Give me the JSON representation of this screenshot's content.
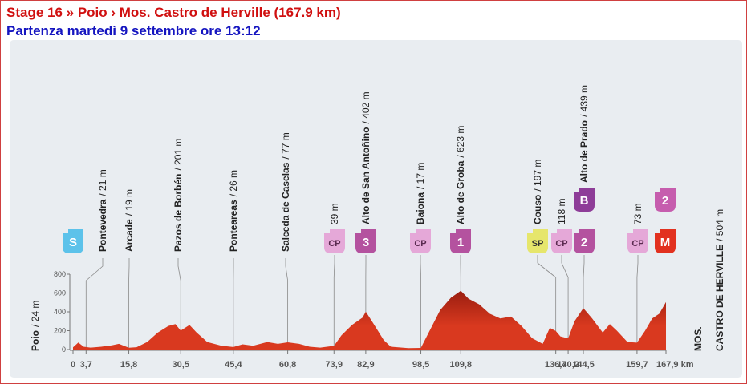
{
  "header": {
    "title": "Stage 16 » Poio › Mos. Castro de Herville (167.9 km)",
    "subtitle": "Partenza martedì 9 settembre ore 13:12"
  },
  "chart_data": {
    "type": "area",
    "color": "#d9391f",
    "x": [
      0,
      1.5,
      3,
      5,
      8,
      11,
      13,
      15.8,
      18,
      21,
      24,
      27,
      29,
      30.5,
      33,
      35,
      38,
      42,
      45.4,
      48,
      51,
      55,
      58,
      60.8,
      64,
      67,
      70,
      73.9,
      76,
      79,
      82,
      82.9,
      85,
      88,
      90,
      95,
      98.5,
      101,
      104,
      107,
      109.8,
      112,
      115,
      118,
      121,
      124,
      127,
      130,
      133,
      135,
      136.7,
      138,
      140.2,
      142,
      144.5,
      147,
      150,
      152,
      154,
      157,
      159.7,
      162,
      164,
      166,
      167.9
    ],
    "values": [
      24,
      75,
      30,
      20,
      30,
      45,
      60,
      19,
      25,
      80,
      180,
      250,
      270,
      201,
      260,
      180,
      80,
      40,
      26,
      55,
      40,
      80,
      60,
      77,
      60,
      30,
      20,
      39,
      150,
      260,
      340,
      402,
      280,
      100,
      30,
      15,
      17,
      200,
      420,
      550,
      623,
      540,
      480,
      380,
      330,
      350,
      250,
      120,
      60,
      230,
      197,
      140,
      118,
      300,
      439,
      330,
      180,
      270,
      200,
      80,
      73,
      200,
      330,
      380,
      504
    ],
    "xlim": [
      0,
      167.9
    ],
    "ylim": [
      0,
      800
    ],
    "yticks": [
      0,
      200,
      400,
      600,
      800
    ],
    "xticks": [
      0,
      {
        "value": 3.7,
        "label": "3,7"
      },
      {
        "value": 15.8,
        "label": "15,8"
      },
      {
        "value": 30.5,
        "label": "30,5"
      },
      {
        "value": 45.4,
        "label": "45,4"
      },
      {
        "value": 60.8,
        "label": "60,8"
      },
      {
        "value": 73.9,
        "label": "73,9"
      },
      {
        "value": 82.9,
        "label": "82,9"
      },
      {
        "value": 98.5,
        "label": "98,5"
      },
      {
        "value": 109.8,
        "label": "109,8"
      },
      {
        "value": 136.7,
        "label": "136,7"
      },
      {
        "value": 140.2,
        "label": "140,2"
      },
      {
        "value": 144.5,
        "label": "144,5"
      },
      {
        "value": 159.7,
        "label": "159,7"
      },
      {
        "value": 167.9,
        "label": "167,9 km"
      }
    ],
    "start": {
      "name": "Poio",
      "elevation_label": "/ 24 m",
      "badges": [
        {
          "text": "S",
          "color": "#5cc2ea",
          "text_color": "#ffffff"
        }
      ]
    },
    "finish": {
      "name_lines": [
        "MOS.",
        "CASTRO DE HERVILLE"
      ],
      "elevation_label": "/ 504 m",
      "badges": [
        {
          "text": "2",
          "color": "#c65dae",
          "text_color": "#ffffff"
        },
        {
          "text": "M",
          "color": "#e2311f",
          "text_color": "#ffffff"
        }
      ]
    },
    "waypoints": [
      {
        "name": "Pontevedra",
        "elevation_label": "/ 21 m"
      },
      {
        "name": "Arcade",
        "elevation_label": "/ 19 m"
      },
      {
        "name": "Pazos de Borbén",
        "elevation_label": "/ 201 m"
      },
      {
        "name": "Ponteareas",
        "elevation_label": "/ 26 m"
      },
      {
        "name": "Salceda de Caselas",
        "elevation_label": "/ 77 m"
      },
      {
        "elevation_label": "39 m",
        "badges": [
          {
            "text": "CP",
            "color": "#e5a8d8",
            "text_color": "#5a2a50"
          }
        ]
      },
      {
        "name": "Alto de San Antoñino",
        "elevation_label": "/ 402 m",
        "badges": [
          {
            "text": "3",
            "color": "#b4529f",
            "text_color": "#ffffff"
          }
        ]
      },
      {
        "name": "Baiona",
        "elevation_label": "/ 17 m",
        "badges": [
          {
            "text": "CP",
            "color": "#e5a8d8",
            "text_color": "#5a2a50"
          }
        ]
      },
      {
        "name": "Alto de Groba",
        "elevation_label": "/ 623 m",
        "badges": [
          {
            "text": "1",
            "color": "#b4529f",
            "text_color": "#ffffff"
          }
        ]
      },
      {
        "name": "Couso",
        "elevation_label": "/ 197 m",
        "badges": [
          {
            "text": "SP",
            "color": "#e6e66c",
            "text_color": "#333333"
          }
        ]
      },
      {
        "elevation_label": "118 m",
        "badges": [
          {
            "text": "CP",
            "color": "#e5a8d8",
            "text_color": "#5a2a50"
          }
        ]
      },
      {
        "name": "Alto de Prado",
        "elevation_label": "/ 439 m",
        "badges": [
          {
            "text": "B",
            "color": "#8e3d98",
            "text_color": "#ffffff"
          },
          {
            "text": "2",
            "color": "#b4529f",
            "text_color": "#ffffff"
          }
        ]
      },
      {
        "elevation_label": "73 m",
        "badges": [
          {
            "text": "CP",
            "color": "#e5a8d8",
            "text_color": "#5a2a50"
          }
        ]
      }
    ]
  }
}
